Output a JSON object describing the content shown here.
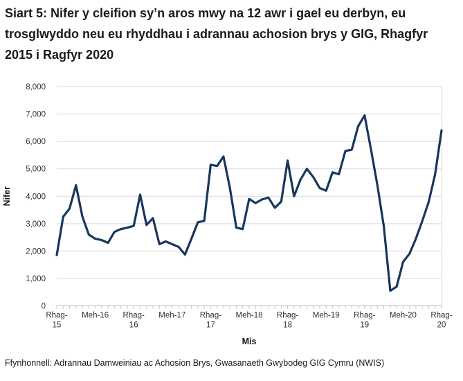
{
  "title": "Siart 5: Nifer y cleifion sy’n aros mwy na 12 awr i gael eu derbyn, eu trosglwyddo neu eu rhyddhau i adrannau achosion brys y GIG, Rhagfyr 2015 i Ragfyr 2020",
  "source": "Ffynhonnell: Adrannau Damweiniau ac Achosion Brys, Gwasanaeth Gwybodeg GIG Cymru (NWIS)",
  "y_axis": {
    "label": "Nifer",
    "tick_labels": [
      "0",
      "1,000",
      "2,000",
      "3,000",
      "4,000",
      "5,000",
      "6,000",
      "7,000",
      "8,000"
    ]
  },
  "x_axis": {
    "label": "Mis",
    "tick_month_indices": [
      0,
      6,
      12,
      18,
      24,
      30,
      36,
      42,
      48,
      54,
      60
    ],
    "tick_labels": [
      [
        "Rhag-",
        "15"
      ],
      [
        "Meh-16"
      ],
      [
        "Rhag-",
        "16"
      ],
      [
        "Meh-17"
      ],
      [
        "Rhag-",
        "17"
      ],
      [
        "Meh-18"
      ],
      [
        "Rhag-",
        "18"
      ],
      [
        "Meh-19"
      ],
      [
        "Rhag-",
        "19"
      ],
      [
        "Meh-20"
      ],
      [
        "Rhag-",
        "20"
      ]
    ]
  },
  "chart_data": {
    "type": "line",
    "title": "Nifer y cleifion sy’n aros mwy na 12 awr i gael eu derbyn, eu trosglwyddo neu eu rhyddhau i adrannau achosion brys y GIG",
    "xlabel": "Mis",
    "ylabel": "Nifer",
    "x_start": "Rhag-15",
    "x_end": "Rhag-20",
    "frequency": "monthly",
    "n_points": 61,
    "ylim": [
      0,
      8000
    ],
    "y_tick_step": 1000,
    "grid": true,
    "legend_position": "none",
    "line_color": "#17375e",
    "grid_color": "#d9d9d9",
    "axis_color": "#bfbfbf",
    "values": [
      1850,
      3250,
      3550,
      4400,
      3250,
      2600,
      2450,
      2400,
      2300,
      2700,
      2800,
      2850,
      2920,
      4060,
      2950,
      3200,
      2250,
      2350,
      2250,
      2150,
      1870,
      2450,
      3050,
      3100,
      5150,
      5100,
      5450,
      4300,
      2850,
      2800,
      3900,
      3750,
      3880,
      3950,
      3580,
      3800,
      5300,
      4000,
      4600,
      5000,
      4700,
      4300,
      4200,
      4870,
      4800,
      5650,
      5700,
      6550,
      6950,
      5700,
      4400,
      2900,
      550,
      700,
      1600,
      1900,
      2450,
      3100,
      3800,
      4800,
      6400
    ]
  }
}
